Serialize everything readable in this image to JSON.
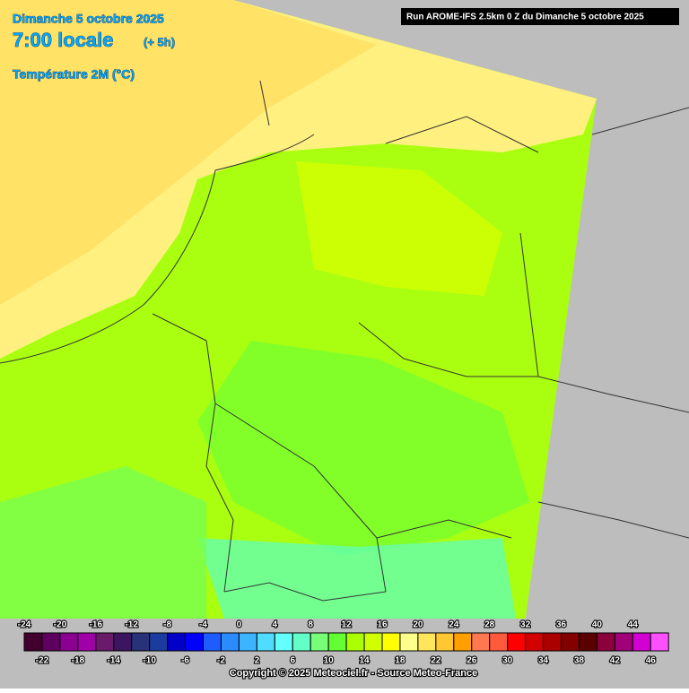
{
  "header": {
    "date": "Dimanche 5 octobre 2025",
    "time": "7:00 locale",
    "offset": "(+ 5h)",
    "variable": "Température 2M (°C)",
    "run": "Run AROME-IFS 2.5km 0 Z du Dimanche 5 octobre 2025"
  },
  "legend": {
    "values": [
      -24,
      -22,
      -20,
      -18,
      -16,
      -14,
      -12,
      -10,
      -8,
      -6,
      -4,
      -2,
      0,
      2,
      4,
      6,
      8,
      10,
      12,
      14,
      16,
      18,
      20,
      22,
      24,
      26,
      28,
      30,
      32,
      34,
      36,
      38,
      40,
      42,
      44,
      46
    ],
    "colors": [
      "#42002e",
      "#5e0060",
      "#8a0090",
      "#a000a8",
      "#6a1a6a",
      "#3c1460",
      "#283278",
      "#1a3c9e",
      "#0000c8",
      "#0000ff",
      "#1e5cff",
      "#2a8cff",
      "#3cb4ff",
      "#50dcff",
      "#64ffff",
      "#64ffc8",
      "#78ff78",
      "#64ff32",
      "#aaff00",
      "#d2ff00",
      "#ffff00",
      "#ffff8c",
      "#ffe65a",
      "#ffc832",
      "#ffa000",
      "#ff7850",
      "#ff5a3c",
      "#ff0000",
      "#d20000",
      "#aa0000",
      "#820000",
      "#5a0000",
      "#8c003c",
      "#a00078",
      "#d200d2",
      "#ff50ff"
    ]
  },
  "footer": {
    "copyright": "Copyright © 2025 Meteociel.fr - Source Meteo-France"
  }
}
